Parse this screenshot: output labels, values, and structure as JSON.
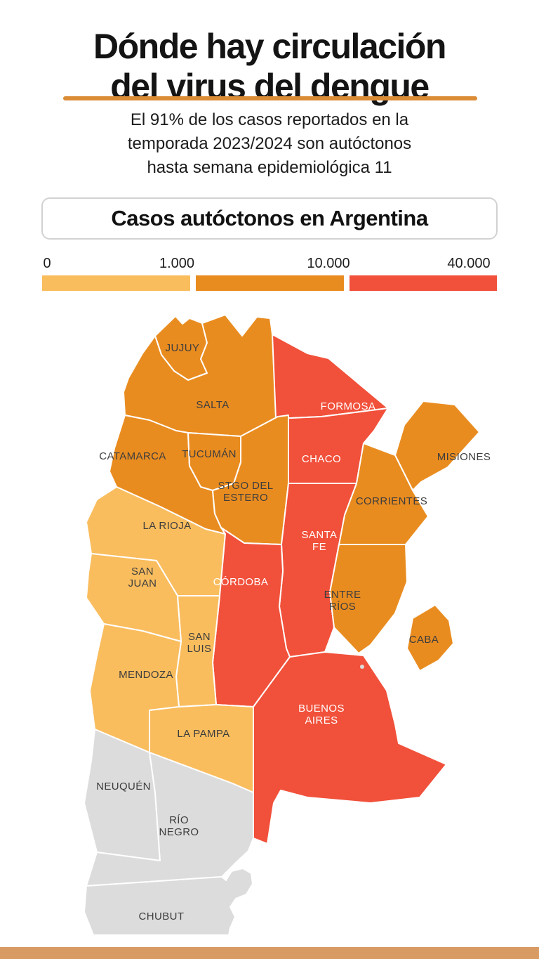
{
  "header": {
    "title_line1": "Dónde hay circulación",
    "title_line2": "del virus del dengue",
    "rule_color": "#DB8C35",
    "subtitle_lines": [
      "El 91% de los casos reportados en la",
      "temporada 2023/2024 son autóctonos",
      "hasta semana epidemiológica 11"
    ]
  },
  "section_box": {
    "label": "Casos autóctonos en Argentina"
  },
  "legend": {
    "stops": [
      "0",
      "1.000",
      "10.000",
      "40.000"
    ],
    "ranges": [
      "0–1.000",
      "1.000–10.000",
      "10.000–40.000"
    ],
    "colors": {
      "low": "#F9BD5E",
      "mid": "#E98C20",
      "high": "#F1503A",
      "none": "#DCDCDC"
    }
  },
  "map": {
    "title": "Casos autóctonos en Argentina",
    "label_colors": {
      "dark": "#3D3D3D",
      "white": "#FFFFFF"
    },
    "provinces": [
      {
        "id": "jujuy",
        "name": "Jujuy",
        "lines": [
          "JUJUY"
        ],
        "level": "mid",
        "label_color": "dark"
      },
      {
        "id": "salta",
        "name": "Salta",
        "lines": [
          "SALTA"
        ],
        "level": "mid",
        "label_color": "dark"
      },
      {
        "id": "formosa",
        "name": "Formosa",
        "lines": [
          "FORMOSA"
        ],
        "level": "high",
        "label_color": "white"
      },
      {
        "id": "catamarca",
        "name": "Catamarca",
        "lines": [
          "CATAMARCA"
        ],
        "level": "mid",
        "label_color": "dark"
      },
      {
        "id": "tucuman",
        "name": "Tucumán",
        "lines": [
          "TUCUMÁN"
        ],
        "level": "mid",
        "label_color": "dark"
      },
      {
        "id": "chaco",
        "name": "Chaco",
        "lines": [
          "CHACO"
        ],
        "level": "high",
        "label_color": "white"
      },
      {
        "id": "misiones",
        "name": "Misiones",
        "lines": [
          "MISIONES"
        ],
        "level": "mid",
        "label_color": "dark"
      },
      {
        "id": "stgo",
        "name": "Santiago del Estero",
        "lines": [
          "STGO DEL",
          "ESTERO"
        ],
        "level": "mid",
        "label_color": "dark"
      },
      {
        "id": "corrientes",
        "name": "Corrientes",
        "lines": [
          "CORRIENTES"
        ],
        "level": "mid",
        "label_color": "dark"
      },
      {
        "id": "larioja",
        "name": "La Rioja",
        "lines": [
          "LA RIOJA"
        ],
        "level": "low",
        "label_color": "dark"
      },
      {
        "id": "santafe",
        "name": "Santa Fe",
        "lines": [
          "SANTA",
          "FE"
        ],
        "level": "high",
        "label_color": "white"
      },
      {
        "id": "sanjuan",
        "name": "San Juan",
        "lines": [
          "SAN",
          "JUAN"
        ],
        "level": "low",
        "label_color": "dark"
      },
      {
        "id": "cordoba",
        "name": "Córdoba",
        "lines": [
          "CÓRDOBA"
        ],
        "level": "high",
        "label_color": "white"
      },
      {
        "id": "entrerios",
        "name": "Entre Ríos",
        "lines": [
          "ENTRE",
          "RÍOS"
        ],
        "level": "mid",
        "label_color": "dark"
      },
      {
        "id": "sanluis",
        "name": "San Luis",
        "lines": [
          "SAN",
          "LUIS"
        ],
        "level": "low",
        "label_color": "dark"
      },
      {
        "id": "caba",
        "name": "CABA",
        "lines": [
          "CABA"
        ],
        "level": "mid",
        "label_color": "dark"
      },
      {
        "id": "mendoza",
        "name": "Mendoza",
        "lines": [
          "MENDOZA"
        ],
        "level": "low",
        "label_color": "dark"
      },
      {
        "id": "buenosaires",
        "name": "Buenos Aires",
        "lines": [
          "BUENOS",
          "AIRES"
        ],
        "level": "high",
        "label_color": "white"
      },
      {
        "id": "lapampa",
        "name": "La Pampa",
        "lines": [
          "LA PAMPA"
        ],
        "level": "low",
        "label_color": "dark"
      },
      {
        "id": "neuquen",
        "name": "Neuquén",
        "lines": [
          "NEUQUÉN"
        ],
        "level": "none",
        "label_color": "dark"
      },
      {
        "id": "rionegro",
        "name": "Río Negro",
        "lines": [
          "RÍO",
          "NEGRO"
        ],
        "level": "none",
        "label_color": "dark"
      },
      {
        "id": "chubut",
        "name": "Chubut",
        "lines": [
          "CHUBUT"
        ],
        "level": "none",
        "label_color": "dark"
      }
    ]
  },
  "footer": {
    "bar_color": "#D99B64"
  }
}
